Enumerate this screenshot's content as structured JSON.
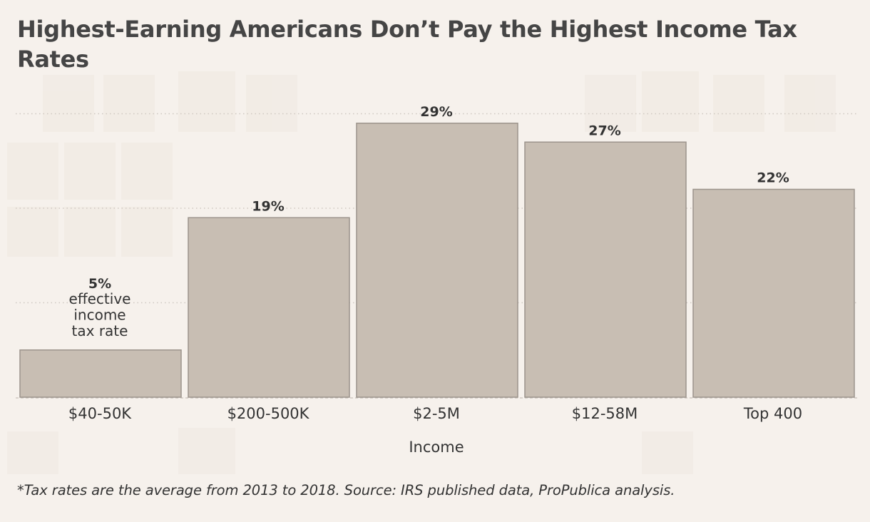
{
  "title": "Highest-Earning Americans Don’t Pay the Highest Income Tax Rates",
  "footnote": "*Tax rates are the average from 2013 to 2018. Source: IRS published data, ProPublica analysis.",
  "colors": {
    "background": "#f6f1ec",
    "bar_fill": "#c8beb3",
    "bar_stroke": "#9c948c",
    "gridline": "#cfc8c1",
    "text": "#333333"
  },
  "chart_data": {
    "type": "bar",
    "title": "Highest-Earning Americans Don’t Pay the Highest Income Tax Rates",
    "xlabel": "Income",
    "ylabel": "",
    "categories": [
      "$40-50K",
      "$200-500K",
      "$2-5M",
      "$12-58M",
      "Top 400"
    ],
    "values": [
      5,
      19,
      29,
      27,
      22
    ],
    "value_labels": [
      "5%",
      "19%",
      "29%",
      "27%",
      "22%"
    ],
    "annotation": [
      "effective",
      "income",
      "tax rate"
    ],
    "ylim": [
      0,
      30
    ],
    "grid": true,
    "gridlines": [
      10,
      20,
      30
    ]
  }
}
